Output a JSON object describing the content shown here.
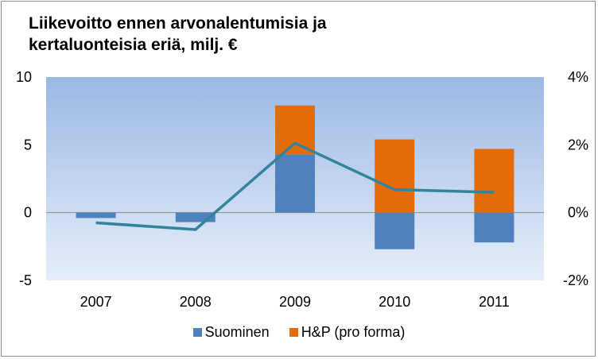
{
  "chart_data": {
    "type": "bar",
    "title": "Liikevoitto ennen arvonalentumisia ja kertaluonteisia eriä, milj. €",
    "categories": [
      "2007",
      "2008",
      "2009",
      "2010",
      "2011"
    ],
    "series": [
      {
        "name": "Suominen",
        "kind": "stacked-bar",
        "axis": "left",
        "color": "#4f81bd",
        "values": [
          -0.4,
          -0.7,
          4.3,
          -2.7,
          -2.2
        ]
      },
      {
        "name": "H&P (pro forma)",
        "kind": "stacked-bar",
        "axis": "left",
        "color": "#e36c09",
        "values": [
          0,
          0,
          3.6,
          5.4,
          4.7
        ]
      },
      {
        "kind": "line",
        "axis": "right",
        "color": "#31849b",
        "values": [
          -0.3,
          -0.5,
          2.05,
          0.68,
          0.6
        ]
      }
    ],
    "yleft": {
      "ylim": [
        -5,
        10
      ],
      "ticks": [
        "10",
        "5",
        "0",
        "-5"
      ],
      "tick_values": [
        10,
        5,
        0,
        -5
      ]
    },
    "yright": {
      "ylim": [
        -2,
        4
      ],
      "ticks": [
        "4%",
        "2%",
        "0%",
        "-2%"
      ],
      "tick_values": [
        4,
        2,
        0,
        -2
      ],
      "unit": "%"
    },
    "legend_position": "bottom",
    "grid": true
  }
}
